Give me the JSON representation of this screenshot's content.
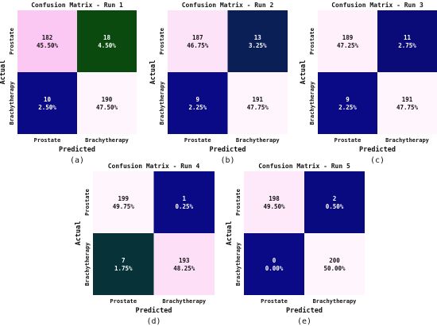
{
  "chart_data": [
    {
      "type": "heatmap",
      "title": "Confusion Matrix - Run 1",
      "xlabel": "Predicted",
      "ylabel": "Actual",
      "x_categories": [
        "Prostate",
        "Brachytherapy"
      ],
      "y_categories": [
        "Prostate",
        "Brachytherapy"
      ],
      "values": [
        [
          182,
          18
        ],
        [
          10,
          190
        ]
      ],
      "percentages": [
        [
          "45.50%",
          "4.50%"
        ],
        [
          "2.50%",
          "47.50%"
        ]
      ],
      "cell_colors": [
        [
          "#fbc8f3",
          "#0b4a0f"
        ],
        [
          "#0a0a86",
          "#fff6fd"
        ]
      ],
      "text_colors": [
        [
          "#111111",
          "#ffffff"
        ],
        [
          "#ffffff",
          "#111111"
        ]
      ],
      "caption": "(a)"
    },
    {
      "type": "heatmap",
      "title": "Confusion Matrix - Run 2",
      "xlabel": "Predicted",
      "ylabel": "Actual",
      "x_categories": [
        "Prostate",
        "Brachytherapy"
      ],
      "y_categories": [
        "Prostate",
        "Brachytherapy"
      ],
      "values": [
        [
          187,
          13
        ],
        [
          9,
          191
        ]
      ],
      "percentages": [
        [
          "46.75%",
          "3.25%"
        ],
        [
          "2.25%",
          "47.75%"
        ]
      ],
      "cell_colors": [
        [
          "#fde3f8",
          "#0a1f55"
        ],
        [
          "#0a0a86",
          "#fff6fd"
        ]
      ],
      "text_colors": [
        [
          "#111111",
          "#ffffff"
        ],
        [
          "#ffffff",
          "#111111"
        ]
      ],
      "caption": "(b)"
    },
    {
      "type": "heatmap",
      "title": "Confusion Matrix - Run 3",
      "xlabel": "Predicted",
      "ylabel": "Actual",
      "x_categories": [
        "Prostate",
        "Brachytherapy"
      ],
      "y_categories": [
        "Prostate",
        "Brachytherapy"
      ],
      "values": [
        [
          189,
          11
        ],
        [
          9,
          191
        ]
      ],
      "percentages": [
        [
          "47.25%",
          "2.75%"
        ],
        [
          "2.25%",
          "47.75%"
        ]
      ],
      "cell_colors": [
        [
          "#fff0fb",
          "#0a0a78"
        ],
        [
          "#0a0a86",
          "#fff6fd"
        ]
      ],
      "text_colors": [
        [
          "#111111",
          "#ffffff"
        ],
        [
          "#ffffff",
          "#111111"
        ]
      ],
      "caption": "(c)"
    },
    {
      "type": "heatmap",
      "title": "Confusion Matrix - Run 4",
      "xlabel": "Predicted",
      "ylabel": "Actual",
      "x_categories": [
        "Prostate",
        "Brachytherapy"
      ],
      "y_categories": [
        "Prostate",
        "Brachytherapy"
      ],
      "values": [
        [
          199,
          1
        ],
        [
          7,
          193
        ]
      ],
      "percentages": [
        [
          "49.75%",
          "0.25%"
        ],
        [
          "1.75%",
          "48.25%"
        ]
      ],
      "cell_colors": [
        [
          "#fff6fd",
          "#0a0a86"
        ],
        [
          "#063238",
          "#fde0f8"
        ]
      ],
      "text_colors": [
        [
          "#111111",
          "#ffffff"
        ],
        [
          "#ffffff",
          "#111111"
        ]
      ],
      "caption": "(d)"
    },
    {
      "type": "heatmap",
      "title": "Confusion Matrix - Run 5",
      "xlabel": "Predicted",
      "ylabel": "Actual",
      "x_categories": [
        "Prostate",
        "Brachytherapy"
      ],
      "y_categories": [
        "Prostate",
        "Brachytherapy"
      ],
      "values": [
        [
          198,
          2
        ],
        [
          0,
          200
        ]
      ],
      "percentages": [
        [
          "49.50%",
          "0.50%"
        ],
        [
          "0.00%",
          "50.00%"
        ]
      ],
      "cell_colors": [
        [
          "#fde9f9",
          "#0a0a80"
        ],
        [
          "#0a0a86",
          "#fff6fd"
        ]
      ],
      "text_colors": [
        [
          "#111111",
          "#ffffff"
        ],
        [
          "#ffffff",
          "#111111"
        ]
      ],
      "caption": "(e)"
    }
  ]
}
